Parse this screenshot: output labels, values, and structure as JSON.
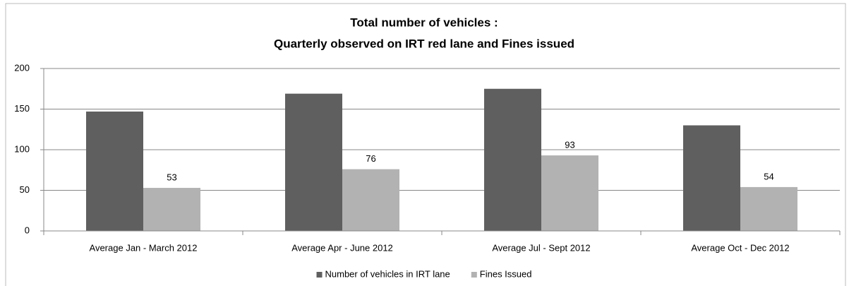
{
  "chart_data": {
    "type": "bar",
    "title": [
      "Total number of vehicles :",
      "Quarterly observed on IRT red lane  and Fines issued"
    ],
    "categories": [
      "Average Jan - March 2012",
      "Average Apr - June 2012",
      "Average Jul - Sept 2012",
      "Average Oct - Dec 2012"
    ],
    "series": [
      {
        "name": "Number of vehicles  in IRT lane",
        "color": "#5f5f5f",
        "values": [
          147,
          169,
          175,
          130
        ]
      },
      {
        "name": "Fines Issued",
        "color": "#b2b2b2",
        "values": [
          53,
          76,
          93,
          54
        ],
        "show_labels": true
      }
    ],
    "ylim": [
      0,
      200
    ],
    "yticks": [
      0,
      50,
      100,
      150,
      200
    ],
    "grid": true,
    "legend": "bottom"
  }
}
